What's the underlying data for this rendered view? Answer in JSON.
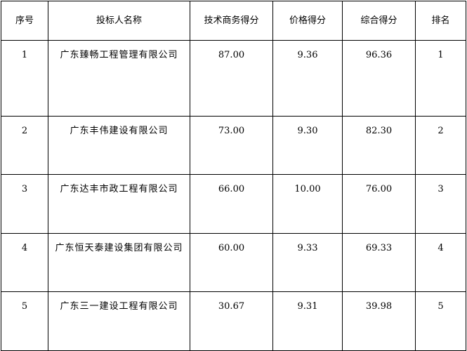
{
  "headers": [
    "序号",
    "投标人名称",
    "技术商务得分",
    "价格得分",
    "综合得分",
    "排名"
  ],
  "rows": [
    {
      "no": "1",
      "name": "广东臻畅工程管理有限公司",
      "tech": "87.00",
      "price": "9.36",
      "total": "96.36",
      "rank": "1"
    },
    {
      "no": "2",
      "name": "广东丰伟建设有限公司",
      "tech": "73.00",
      "price": "9.30",
      "total": "82.30",
      "rank": "2"
    },
    {
      "no": "3",
      "name": "广东达丰市政工程有限公司",
      "tech": "66.00",
      "price": "10.00",
      "total": "76.00",
      "rank": "3"
    },
    {
      "no": "4",
      "name": "广东恒天泰建设集团有限公司",
      "tech": "60.00",
      "price": "9.33",
      "total": "69.33",
      "rank": "4"
    },
    {
      "no": "5",
      "name": "广东三一建设工程有限公司",
      "tech": "30.67",
      "price": "9.31",
      "total": "39.98",
      "rank": "5"
    }
  ]
}
